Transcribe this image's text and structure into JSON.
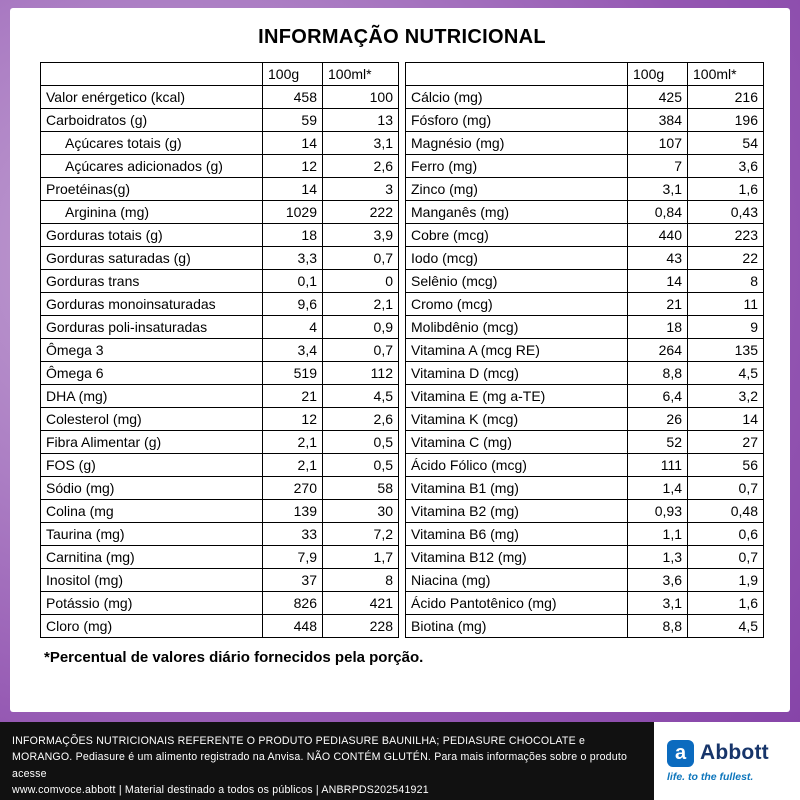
{
  "title": "INFORMAÇÃO NUTRICIONAL",
  "col_headers": {
    "col1": "100g",
    "col2": "100ml*"
  },
  "colors": {
    "background_purple": "#8e4fae",
    "footer_bar_black": "#111111",
    "abbott_logo_blue": "#0b6bbf",
    "tagline_blue": "#0e76bc"
  },
  "left_table": {
    "rows": [
      {
        "label": "Valor enérgetico (kcal)",
        "v100g": "458",
        "v100ml": "100"
      },
      {
        "label": "Carboidratos (g)",
        "v100g": "59",
        "v100ml": "13"
      },
      {
        "label": "Açúcares totais (g)",
        "indent": true,
        "v100g": "14",
        "v100ml": "3,1"
      },
      {
        "label": "Açúcares adicionados (g)",
        "indent": true,
        "v100g": "12",
        "v100ml": "2,6"
      },
      {
        "label": "Proetéinas(g)",
        "v100g": "14",
        "v100ml": "3"
      },
      {
        "label": "Arginina (mg)",
        "indent": true,
        "v100g": "1029",
        "v100ml": "222"
      },
      {
        "label": "Gorduras totais (g)",
        "v100g": "18",
        "v100ml": "3,9"
      },
      {
        "label": "Gorduras saturadas (g)",
        "v100g": "3,3",
        "v100ml": "0,7"
      },
      {
        "label": "Gorduras trans",
        "v100g": "0,1",
        "v100ml": "0"
      },
      {
        "label": "Gorduras monoinsaturadas",
        "v100g": "9,6",
        "v100ml": "2,1"
      },
      {
        "label": "Gorduras poli-insaturadas",
        "v100g": "4",
        "v100ml": "0,9"
      },
      {
        "label": "Ômega 3",
        "v100g": "3,4",
        "v100ml": "0,7"
      },
      {
        "label": "Ômega 6",
        "v100g": "519",
        "v100ml": "112"
      },
      {
        "label": "DHA (mg)",
        "v100g": "21",
        "v100ml": "4,5"
      },
      {
        "label": "Colesterol (mg)",
        "v100g": "12",
        "v100ml": "2,6"
      },
      {
        "label": "Fibra Alimentar (g)",
        "v100g": "2,1",
        "v100ml": "0,5"
      },
      {
        "label": "FOS (g)",
        "v100g": "2,1",
        "v100ml": "0,5"
      },
      {
        "label": "Sódio (mg)",
        "v100g": "270",
        "v100ml": "58"
      },
      {
        "label": "Colina (mg",
        "v100g": "139",
        "v100ml": "30"
      },
      {
        "label": "Taurina (mg)",
        "v100g": "33",
        "v100ml": "7,2"
      },
      {
        "label": "Carnitina (mg)",
        "v100g": "7,9",
        "v100ml": "1,7"
      },
      {
        "label": "Inositol (mg)",
        "v100g": "37",
        "v100ml": "8"
      },
      {
        "label": "Potássio (mg)",
        "v100g": "826",
        "v100ml": "421"
      },
      {
        "label": "Cloro (mg)",
        "v100g": "448",
        "v100ml": "228"
      }
    ]
  },
  "right_table": {
    "rows": [
      {
        "label": "Cálcio (mg)",
        "v100g": "425",
        "v100ml": "216"
      },
      {
        "label": "Fósforo (mg)",
        "v100g": "384",
        "v100ml": "196"
      },
      {
        "label": "Magnésio (mg)",
        "v100g": "107",
        "v100ml": "54"
      },
      {
        "label": "Ferro (mg)",
        "v100g": "7",
        "v100ml": "3,6"
      },
      {
        "label": "Zinco (mg)",
        "v100g": "3,1",
        "v100ml": "1,6"
      },
      {
        "label": "Manganês (mg)",
        "v100g": "0,84",
        "v100ml": "0,43"
      },
      {
        "label": "Cobre (mcg)",
        "v100g": "440",
        "v100ml": "223"
      },
      {
        "label": "Iodo (mcg)",
        "v100g": "43",
        "v100ml": "22"
      },
      {
        "label": "Selênio (mcg)",
        "v100g": "14",
        "v100ml": "8"
      },
      {
        "label": "Cromo (mcg)",
        "v100g": "21",
        "v100ml": "11"
      },
      {
        "label": "Molibdênio (mcg)",
        "v100g": "18",
        "v100ml": "9"
      },
      {
        "label": "Vitamina A (mcg RE)",
        "v100g": "264",
        "v100ml": "135"
      },
      {
        "label": "Vitamina D (mcg)",
        "v100g": "8,8",
        "v100ml": "4,5"
      },
      {
        "label": "Vitamina E (mg a-TE)",
        "v100g": "6,4",
        "v100ml": "3,2"
      },
      {
        "label": "Vitamina K (mcg)",
        "v100g": "26",
        "v100ml": "14"
      },
      {
        "label": "Vitamina C (mg)",
        "v100g": "52",
        "v100ml": "27"
      },
      {
        "label": "Ácido Fólico (mcg)",
        "v100g": "111",
        "v100ml": "56"
      },
      {
        "label": "Vitamina B1 (mg)",
        "v100g": "1,4",
        "v100ml": "0,7"
      },
      {
        "label": "Vitamina B2 (mg)",
        "v100g": "0,93",
        "v100ml": "0,48"
      },
      {
        "label": "Vitamina B6 (mg)",
        "v100g": "1,1",
        "v100ml": "0,6"
      },
      {
        "label": "Vitamina B12 (mg)",
        "v100g": "1,3",
        "v100ml": "0,7"
      },
      {
        "label": "Niacina (mg)",
        "v100g": "3,6",
        "v100ml": "1,9"
      },
      {
        "label": "Ácido Pantotênico (mg)",
        "v100g": "3,1",
        "v100ml": "1,6"
      },
      {
        "label": "Biotina (mg)",
        "v100g": "8,8",
        "v100ml": "4,5"
      }
    ]
  },
  "footnote": "*Percentual de valores diário fornecidos pela porção.",
  "footer": {
    "lines": [
      "INFORMAÇÕES NUTRICIONAIS REFERENTE O PRODUTO PEDIASURE BAUNILHA; PEDIASURE CHOCOLATE e",
      "MORANGO. Pediasure é um alimento registrado na Anvisa. NÃO CONTÉM GLUTÉN. Para mais informações sobre o produto acesse",
      "www.comvoce.abbott | Material destinado a todos os públicos | ANBRPDS202541921"
    ],
    "brand": "Abbott",
    "logo_letter": "a",
    "tagline": "life. to the fullest."
  }
}
